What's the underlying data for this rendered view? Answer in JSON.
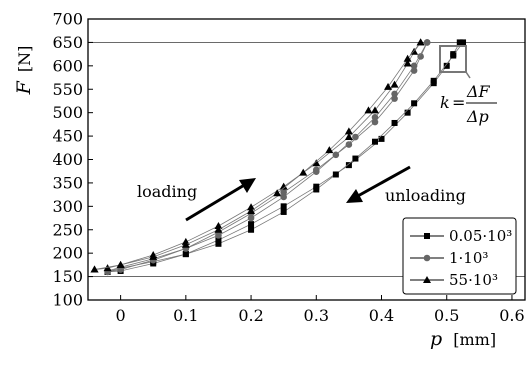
{
  "chart_data": {
    "type": "line",
    "xlabel": "p",
    "xunit": "[mm]",
    "ylabel": "F",
    "yunit": "[N]",
    "xlim": [
      -0.05,
      0.62
    ],
    "ylim": [
      100,
      700
    ],
    "xticks": [
      0,
      0.1,
      0.2,
      0.3,
      0.4,
      0.5,
      0.6
    ],
    "xtick_labels": [
      "0",
      "0.1",
      "0.2",
      "0.3",
      "0.4",
      "0.5",
      "0.6"
    ],
    "yticks": [
      100,
      150,
      200,
      250,
      300,
      350,
      400,
      450,
      500,
      550,
      600,
      650,
      700
    ],
    "ytick_labels": [
      "100",
      "150",
      "200",
      "250",
      "300",
      "350",
      "400",
      "450",
      "500",
      "550",
      "600",
      "650",
      "700"
    ],
    "grid": false,
    "reference_lines_y": [
      150,
      650
    ],
    "legend_position": "right",
    "annotations": {
      "loading": "loading",
      "unloading": "unloading",
      "slope_lhs": "k",
      "slope_num": "ΔF",
      "slope_den": "Δp"
    },
    "series": [
      {
        "name": "0.05·10³",
        "marker": "square",
        "color": "#000000",
        "loading": {
          "x": [
            -0.02,
            0.0,
            0.05,
            0.1,
            0.15,
            0.2,
            0.25,
            0.3,
            0.35,
            0.4,
            0.44,
            0.48,
            0.5,
            0.51,
            0.52
          ],
          "y": [
            160,
            162,
            178,
            198,
            228,
            262,
            300,
            342,
            388,
            444,
            500,
            563,
            600,
            625,
            650
          ]
        },
        "unloading": {
          "x": [
            0.525,
            0.51,
            0.48,
            0.45,
            0.42,
            0.39,
            0.36,
            0.33,
            0.3,
            0.25,
            0.2,
            0.15,
            0.1,
            0.05,
            0.0,
            -0.02
          ],
          "y": [
            650,
            622,
            568,
            520,
            478,
            438,
            402,
            368,
            336,
            288,
            250,
            220,
            198,
            182,
            168,
            160
          ]
        }
      },
      {
        "name": "1·10³",
        "marker": "circle",
        "color": "#666666",
        "loading": {
          "x": [
            -0.02,
            0.0,
            0.05,
            0.1,
            0.15,
            0.2,
            0.25,
            0.3,
            0.35,
            0.39,
            0.42,
            0.45,
            0.46,
            0.47
          ],
          "y": [
            160,
            165,
            185,
            210,
            245,
            285,
            330,
            378,
            432,
            480,
            530,
            590,
            620,
            650
          ]
        },
        "unloading": {
          "x": [
            0.47,
            0.45,
            0.42,
            0.39,
            0.36,
            0.33,
            0.3,
            0.25,
            0.2,
            0.15,
            0.1,
            0.05,
            0.0,
            -0.02
          ],
          "y": [
            650,
            600,
            540,
            490,
            448,
            410,
            374,
            320,
            275,
            238,
            210,
            188,
            170,
            162
          ]
        }
      },
      {
        "name": "55·10³",
        "marker": "triangle",
        "color": "#000000",
        "loading": {
          "x": [
            -0.04,
            -0.02,
            0.0,
            0.05,
            0.1,
            0.15,
            0.2,
            0.25,
            0.3,
            0.35,
            0.39,
            0.42,
            0.44,
            0.45,
            0.46
          ],
          "y": [
            165,
            168,
            175,
            196,
            224,
            258,
            298,
            342,
            392,
            448,
            505,
            560,
            605,
            630,
            650
          ]
        },
        "unloading": {
          "x": [
            0.46,
            0.44,
            0.41,
            0.38,
            0.35,
            0.32,
            0.28,
            0.24,
            0.2,
            0.15,
            0.1,
            0.05,
            0.0,
            -0.04
          ],
          "y": [
            650,
            615,
            555,
            505,
            460,
            420,
            372,
            328,
            290,
            250,
            218,
            192,
            175,
            165
          ]
        }
      }
    ]
  }
}
